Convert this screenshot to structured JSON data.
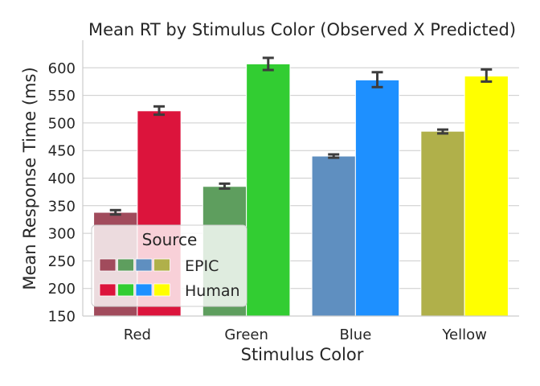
{
  "chart_data": {
    "type": "bar",
    "title": "Mean RT by Stimulus Color (Observed X Predicted)",
    "xlabel": "Stimulus Color",
    "ylabel": "Mean Response Time (ms)",
    "ylim": [
      150,
      650
    ],
    "yticks": [
      150,
      200,
      250,
      300,
      350,
      400,
      450,
      500,
      550,
      600
    ],
    "grid": "horizontal",
    "categories": [
      "Red",
      "Green",
      "Blue",
      "Yellow"
    ],
    "series": [
      {
        "name": "EPIC",
        "values": [
          338,
          385,
          440,
          485
        ],
        "err_low": [
          334,
          381,
          437,
          481
        ],
        "err_high": [
          342,
          390,
          443,
          488
        ],
        "colors": [
          "#a14b5c",
          "#5e9e5e",
          "#5f8fc0",
          "#b0b04a"
        ]
      },
      {
        "name": "Human",
        "values": [
          522,
          607,
          578,
          585
        ],
        "err_low": [
          515,
          596,
          565,
          575
        ],
        "err_high": [
          530,
          618,
          592,
          597
        ],
        "colors": [
          "#dc143c",
          "#32cd32",
          "#1e90ff",
          "#ffff00"
        ]
      }
    ],
    "legend": {
      "title": "Source",
      "placement": "lower-left"
    }
  }
}
